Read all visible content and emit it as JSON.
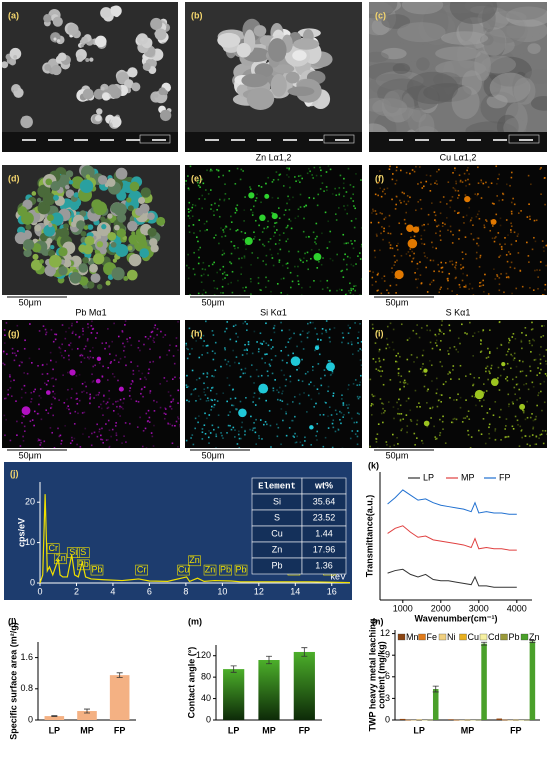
{
  "images": [
    {
      "label": "(a)"
    },
    {
      "label": "(b)"
    },
    {
      "label": "(c)"
    },
    {
      "label": "(d)",
      "scale_bar": "50μm"
    },
    {
      "label": "(e)",
      "title": "Zn Lα1,2",
      "scale_bar": "50μm"
    },
    {
      "label": "(f)",
      "title": "Cu Lα1,2",
      "scale_bar": "50μm"
    },
    {
      "label": "(g)",
      "title": "Pb Mα1",
      "scale_bar": "50μm"
    },
    {
      "label": "(h)",
      "title": "Si Kα1",
      "scale_bar": "50μm"
    },
    {
      "label": "(i)",
      "title": "S Kα1",
      "scale_bar": "50μm"
    }
  ],
  "chart_data": [
    {
      "type": "spectrum",
      "panel_label": "(j)",
      "x_label": "keV",
      "y_label": "cps/eV",
      "xlim": [
        0,
        17
      ],
      "ylim": [
        0,
        25
      ],
      "xticks": [
        0,
        2,
        4,
        6,
        8,
        10,
        12,
        14,
        16
      ],
      "yticks": [
        0,
        10,
        20
      ],
      "x": [
        0,
        0.15,
        0.28,
        0.4,
        0.52,
        0.7,
        0.93,
        1.01,
        1.1,
        1.25,
        1.5,
        1.74,
        1.9,
        2.1,
        2.31,
        2.35,
        2.5,
        2.8,
        3.5,
        4.5,
        5.41,
        6,
        7,
        8.04,
        8.2,
        8.64,
        9,
        9.57,
        10.5,
        11,
        12.6,
        14.8,
        16,
        17
      ],
      "values": [
        0,
        2,
        22,
        3,
        4,
        2,
        5,
        6,
        2,
        1.5,
        1.5,
        7,
        2,
        1.5,
        5,
        4.5,
        1.5,
        1,
        0.8,
        0.6,
        1,
        0.5,
        0.4,
        1.5,
        0.4,
        1.2,
        0.4,
        0.6,
        0.5,
        0.3,
        0.3,
        0.3,
        0.2,
        0.1
      ],
      "color": "#f0e000",
      "annotations": [
        {
          "text": "Cr",
          "x": 0.45,
          "y": 8.5
        },
        {
          "text": "Zn",
          "x": 0.85,
          "y": 6
        },
        {
          "text": "Si",
          "x": 1.55,
          "y": 7.5
        },
        {
          "text": "S",
          "x": 2.1,
          "y": 7.5
        },
        {
          "text": "Pb",
          "x": 2.1,
          "y": 4.5
        },
        {
          "text": "Pb",
          "x": 2.85,
          "y": 3.2
        },
        {
          "text": "Cr",
          "x": 5.3,
          "y": 3.2
        },
        {
          "text": "Cu",
          "x": 7.6,
          "y": 3.2
        },
        {
          "text": "Zn",
          "x": 8.2,
          "y": 5.5
        },
        {
          "text": "Zn",
          "x": 9.05,
          "y": 3.2
        },
        {
          "text": "Pb",
          "x": 9.9,
          "y": 3.2
        },
        {
          "text": "Pb",
          "x": 10.75,
          "y": 3.2
        },
        {
          "text": "Pb",
          "x": 13.65,
          "y": 3.2
        },
        {
          "text": "Pb",
          "x": 15.6,
          "y": 3.2
        }
      ],
      "table": {
        "columns": [
          "Element",
          "wt%"
        ],
        "rows": [
          [
            "Si",
            35.64
          ],
          [
            "S",
            23.52
          ],
          [
            "Cu",
            1.44
          ],
          [
            "Zn",
            17.96
          ],
          [
            "Pb",
            1.36
          ]
        ]
      }
    },
    {
      "type": "line",
      "panel_label": "(k)",
      "x_label": "Wavenumber(cm⁻¹)",
      "y_label": "Transmittance(a.u.)",
      "xlim": [
        400,
        4400
      ],
      "ylim": [
        0,
        10
      ],
      "xticks": [
        1000,
        2000,
        3000,
        4000
      ],
      "x": [
        600,
        800,
        1000,
        1200,
        1400,
        1600,
        1800,
        2000,
        2200,
        2400,
        2600,
        2800,
        2900,
        3000,
        3200,
        3400,
        3600,
        3800,
        4000
      ],
      "series": [
        {
          "name": "LP",
          "color": "#333333",
          "values": [
            2.1,
            2.3,
            2.4,
            2.0,
            1.8,
            2.0,
            1.6,
            1.5,
            1.5,
            1.4,
            1.3,
            1.2,
            1.8,
            1.1,
            1.1,
            1.0,
            1.0,
            1.0,
            1.0
          ]
        },
        {
          "name": "MP",
          "color": "#e04040",
          "values": [
            5.2,
            5.6,
            5.8,
            5.3,
            4.9,
            5.0,
            4.7,
            4.6,
            4.5,
            4.4,
            4.3,
            4.1,
            4.8,
            4.0,
            4.1,
            4.0,
            4.0,
            3.9,
            3.9
          ]
        },
        {
          "name": "FP",
          "color": "#2070d0",
          "values": [
            7.5,
            8.0,
            8.6,
            8.2,
            7.8,
            7.9,
            7.6,
            7.4,
            7.3,
            7.2,
            7.1,
            6.9,
            7.6,
            6.8,
            6.9,
            6.8,
            6.8,
            6.7,
            6.7
          ]
        }
      ]
    },
    {
      "type": "bar",
      "panel_label": "(l)",
      "y_label": "Specific surface area (m²/g)",
      "categories": [
        "LP",
        "MP",
        "FP"
      ],
      "values": [
        0.1,
        0.23,
        1.15
      ],
      "errors": [
        0.01,
        0.05,
        0.06
      ],
      "ylim": [
        0,
        2
      ],
      "yticks": [
        0,
        0.8,
        1.6
      ],
      "color": "#f4b183"
    },
    {
      "type": "bar",
      "panel_label": "(m)",
      "y_label": "Contact angle (°)",
      "categories": [
        "LP",
        "MP",
        "FP"
      ],
      "values": [
        95,
        112,
        127
      ],
      "errors": [
        6,
        7,
        8
      ],
      "ylim": [
        0,
        140
      ],
      "yticks": [
        0,
        40,
        80,
        120
      ],
      "color": "#4caf2a",
      "gradient": true
    },
    {
      "type": "grouped_bar",
      "panel_label": "(n)",
      "y_label": [
        "TWP heavy metal leaching",
        "content (mg/kg)"
      ],
      "categories": [
        "LP",
        "MP",
        "FP"
      ],
      "ylim": [
        0,
        12.5
      ],
      "yticks": [
        0,
        3,
        6,
        9,
        12
      ],
      "series": [
        {
          "name": "Mn",
          "color": "#8b4513",
          "values": [
            0.15,
            0.1,
            0.2
          ]
        },
        {
          "name": "Fe",
          "color": "#e07b1a",
          "values": [
            0.02,
            0.02,
            0.03
          ]
        },
        {
          "name": "Ni",
          "color": "#f0d080",
          "values": [
            0.01,
            0.01,
            0.01
          ]
        },
        {
          "name": "Cu",
          "color": "#e8b020",
          "values": [
            0.05,
            0.03,
            0.03
          ]
        },
        {
          "name": "Cd",
          "color": "#f5f0a0",
          "values": [
            0.01,
            0.01,
            0.01
          ]
        },
        {
          "name": "Pb",
          "color": "#9a9a3a",
          "values": [
            0.03,
            0.02,
            0.02
          ]
        },
        {
          "name": "Zn",
          "color": "#4aa02a",
          "values": [
            4.3,
            10.6,
            10.9
          ],
          "errors": [
            0.4,
            0.2,
            0.15
          ]
        }
      ]
    }
  ]
}
